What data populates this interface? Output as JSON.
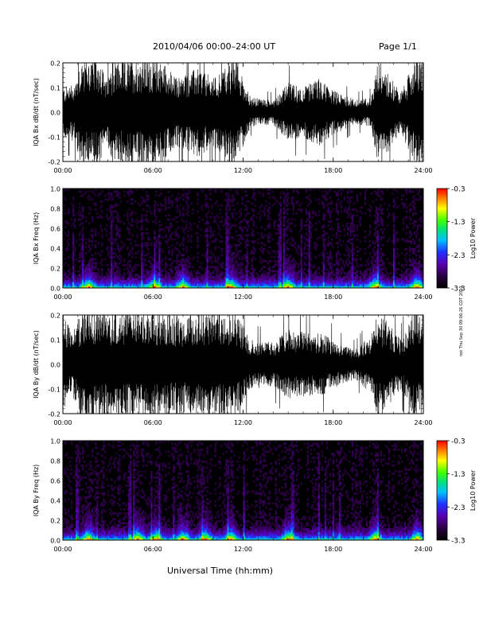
{
  "header": {
    "title": "2010/04/06  00:00–24:00 UT",
    "page": "Page 1/1"
  },
  "x_axis_title": "Universal Time (hh:mm)",
  "stamp": "not Thu Sep 30 09:06:26 CDT 2010",
  "chart_data": [
    {
      "type": "line",
      "ylabel": "IQA Bx dB/dt (nT/sec)",
      "ylim": [
        -0.2,
        0.2
      ],
      "yticks": [
        "0.2",
        "0.1",
        "0.0",
        "-0.1",
        "-0.2"
      ],
      "x_ticks": [
        "00:00",
        "06:00",
        "12:00",
        "18:00",
        "24:00"
      ],
      "xlim_hours": [
        0,
        24
      ],
      "series_color": "#000000",
      "amplitude_profile": [
        {
          "hour": 0.0,
          "amp": 0.1
        },
        {
          "hour": 0.8,
          "amp": 0.12
        },
        {
          "hour": 1.2,
          "amp": 0.22
        },
        {
          "hour": 2.5,
          "amp": 0.22
        },
        {
          "hour": 2.9,
          "amp": 0.12
        },
        {
          "hour": 3.3,
          "amp": 0.2
        },
        {
          "hour": 5.0,
          "amp": 0.22
        },
        {
          "hour": 6.5,
          "amp": 0.22
        },
        {
          "hour": 7.5,
          "amp": 0.14
        },
        {
          "hour": 9.0,
          "amp": 0.18
        },
        {
          "hour": 10.0,
          "amp": 0.14
        },
        {
          "hour": 11.5,
          "amp": 0.22
        },
        {
          "hour": 12.5,
          "amp": 0.06
        },
        {
          "hour": 14.0,
          "amp": 0.05
        },
        {
          "hour": 15.0,
          "amp": 0.12
        },
        {
          "hour": 16.0,
          "amp": 0.1
        },
        {
          "hour": 17.0,
          "amp": 0.14
        },
        {
          "hour": 18.0,
          "amp": 0.09
        },
        {
          "hour": 19.5,
          "amp": 0.05
        },
        {
          "hour": 20.5,
          "amp": 0.06
        },
        {
          "hour": 21.0,
          "amp": 0.22
        },
        {
          "hour": 22.5,
          "amp": 0.08
        },
        {
          "hour": 23.5,
          "amp": 0.22
        },
        {
          "hour": 24.0,
          "amp": 0.22
        }
      ]
    },
    {
      "type": "heatmap",
      "ylabel": "IQA Bx Freq (Hz)",
      "ylim": [
        0.0,
        1.0
      ],
      "yticks": [
        "1.0",
        "0.8",
        "0.6",
        "0.4",
        "0.2",
        "0.0"
      ],
      "x_ticks": [
        "00:00",
        "06:00",
        "12:00",
        "18:00",
        "24:00"
      ],
      "xlim_hours": [
        0,
        24
      ],
      "colorbar": {
        "label": "Log10 Power",
        "ticks": [
          "-0.3",
          "-1.3",
          "-2.3",
          "-3.3"
        ],
        "range": [
          -3.3,
          -0.3
        ]
      },
      "bursts_hours": [
        1.7,
        6.1,
        8.0,
        11.2,
        15.0,
        20.8,
        23.6
      ]
    },
    {
      "type": "line",
      "ylabel": "IQA By dB/dt (nT/sec)",
      "ylim": [
        -0.2,
        0.2
      ],
      "yticks": [
        "0.2",
        "0.1",
        "0.0",
        "-0.1",
        "-0.2"
      ],
      "x_ticks": [
        "00:00",
        "06:00",
        "12:00",
        "18:00",
        "24:00"
      ],
      "xlim_hours": [
        0,
        24
      ],
      "series_color": "#000000",
      "amplitude_profile": [
        {
          "hour": 0.0,
          "amp": 0.22
        },
        {
          "hour": 0.6,
          "amp": 0.12
        },
        {
          "hour": 1.2,
          "amp": 0.22
        },
        {
          "hour": 4.0,
          "amp": 0.22
        },
        {
          "hour": 6.0,
          "amp": 0.22
        },
        {
          "hour": 8.0,
          "amp": 0.2
        },
        {
          "hour": 10.0,
          "amp": 0.22
        },
        {
          "hour": 11.5,
          "amp": 0.22
        },
        {
          "hour": 12.5,
          "amp": 0.1
        },
        {
          "hour": 14.0,
          "amp": 0.09
        },
        {
          "hour": 15.0,
          "amp": 0.14
        },
        {
          "hour": 16.5,
          "amp": 0.13
        },
        {
          "hour": 17.5,
          "amp": 0.12
        },
        {
          "hour": 18.5,
          "amp": 0.08
        },
        {
          "hour": 19.5,
          "amp": 0.06
        },
        {
          "hour": 20.5,
          "amp": 0.12
        },
        {
          "hour": 21.0,
          "amp": 0.22
        },
        {
          "hour": 22.5,
          "amp": 0.1
        },
        {
          "hour": 23.4,
          "amp": 0.22
        },
        {
          "hour": 24.0,
          "amp": 0.22
        }
      ]
    },
    {
      "type": "heatmap",
      "ylabel": "IQA By Freq (Hz)",
      "ylim": [
        0.0,
        1.0
      ],
      "yticks": [
        "1.0",
        "0.8",
        "0.6",
        "0.4",
        "0.2",
        "0.0"
      ],
      "x_ticks": [
        "00:00",
        "06:00",
        "12:00",
        "18:00",
        "24:00"
      ],
      "xlim_hours": [
        0,
        24
      ],
      "colorbar": {
        "label": "Log10 Power",
        "ticks": [
          "-0.3",
          "-1.3",
          "-2.3",
          "-3.3"
        ],
        "range": [
          -3.3,
          -0.3
        ]
      },
      "bursts_hours": [
        1.7,
        5.0,
        6.2,
        8.0,
        9.5,
        11.2,
        15.0,
        20.8,
        23.6
      ]
    }
  ]
}
